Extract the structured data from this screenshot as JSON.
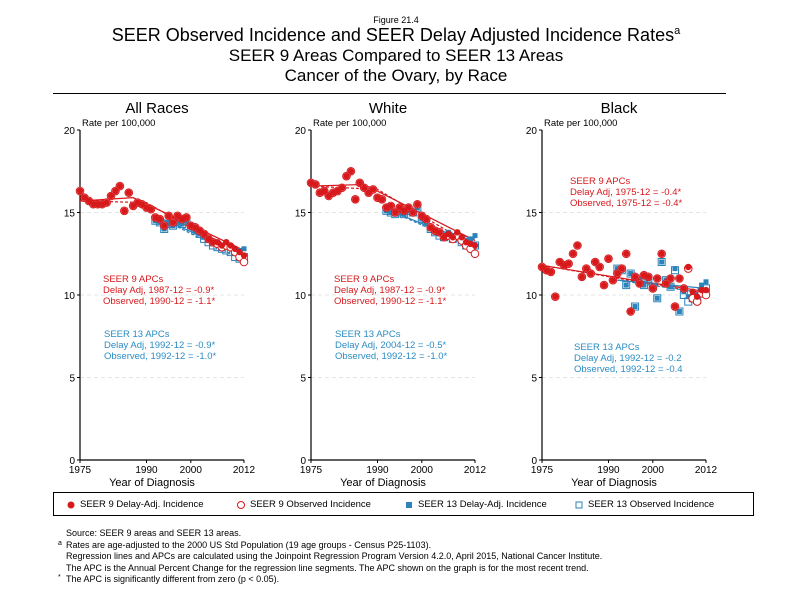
{
  "figure_label": "Figure 21.4",
  "title_line1": "SEER Observed Incidence and SEER Delay Adjusted Incidence Rates",
  "title_sup": "a",
  "title_line2": "SEER 9 Areas Compared to SEER 13 Areas",
  "title_line3": "Cancer of the Ovary, by Race",
  "colors": {
    "seer9": "#d7191c",
    "seer13": "#2b83ba",
    "seer13_text": "#2b8cc4"
  },
  "legend": [
    {
      "label": "SEER 9 Delay-Adj. Incidence",
      "marker": "filled-circle",
      "color": "#d7191c"
    },
    {
      "label": "SEER 9 Observed Incidence",
      "marker": "open-circle",
      "color": "#d7191c"
    },
    {
      "label": "SEER 13 Delay-Adj. Incidence",
      "marker": "filled-square",
      "color": "#2b83ba"
    },
    {
      "label": "SEER 13 Observed Incidence",
      "marker": "open-square",
      "color": "#2b83ba"
    }
  ],
  "notes": [
    {
      "marker": "",
      "text": "Source: SEER 9 areas and SEER 13 areas."
    },
    {
      "marker": "a",
      "text": "Rates are age-adjusted to the 2000 US Std Population (19 age groups - Census P25-1103)."
    },
    {
      "marker": "",
      "text": "Regression lines and APCs are calculated using the Joinpoint Regression Program Version 4.2.0, April 2015, National Cancer Institute."
    },
    {
      "marker": "",
      "text": "The APC is the Annual Percent Change for the regression line segments. The APC shown on the graph is for the most recent trend."
    },
    {
      "marker": "*",
      "text": "The APC is significantly different from zero (p < 0.05)."
    }
  ],
  "chart_data": [
    {
      "type": "scatter",
      "title": "All Races",
      "ylabel": "Rate per 100,000",
      "xlabel": "Year of Diagnosis",
      "xlim": [
        1975,
        2012
      ],
      "ylim": [
        0,
        20
      ],
      "xticks": [
        1975,
        1990,
        2000,
        2012
      ],
      "yticks": [
        0,
        5,
        10,
        15,
        20
      ],
      "grid": "horizontal-dashed",
      "seer9_years_start": 1975,
      "seer13_years_start": 1992,
      "seer9_delay_adj": [
        16.3,
        15.9,
        15.7,
        15.5,
        15.5,
        15.5,
        15.6,
        16.0,
        16.3,
        16.6,
        15.1,
        16.2,
        15.4,
        15.6,
        15.5,
        15.3,
        15.2,
        14.7,
        14.6,
        14.2,
        14.8,
        14.4,
        14.8,
        14.6,
        14.7,
        14.2,
        14.1,
        13.9,
        13.7,
        13.4,
        13.2,
        13.2,
        13.0,
        13.2,
        13.0,
        12.8,
        12.6,
        12.4
      ],
      "seer9_observed": [
        16.3,
        15.9,
        15.7,
        15.5,
        15.5,
        15.5,
        15.6,
        16.0,
        16.3,
        16.6,
        15.1,
        16.2,
        15.4,
        15.6,
        15.5,
        15.3,
        15.2,
        14.7,
        14.6,
        14.2,
        14.8,
        14.4,
        14.8,
        14.6,
        14.7,
        14.2,
        14.1,
        13.9,
        13.7,
        13.4,
        13.2,
        13.1,
        12.9,
        13.0,
        12.9,
        12.6,
        12.3,
        12.0
      ],
      "seer13_delay_adj": [
        14.5,
        14.4,
        14.0,
        14.3,
        14.2,
        14.4,
        14.3,
        14.5,
        14.1,
        13.9,
        13.7,
        13.5,
        13.3,
        13.1,
        13.1,
        13.0,
        13.0,
        12.9,
        12.6,
        12.7,
        12.8
      ],
      "seer13_observed": [
        14.5,
        14.4,
        14.0,
        14.3,
        14.2,
        14.4,
        14.3,
        14.5,
        14.1,
        13.9,
        13.7,
        13.4,
        13.2,
        13.0,
        12.9,
        12.8,
        12.7,
        12.6,
        12.3,
        12.2,
        12.3
      ],
      "trend_seer9_delay_adj": [
        [
          1975,
          15.7
        ],
        [
          1987,
          15.9
        ],
        [
          2012,
          12.7
        ]
      ],
      "trend_seer9_observed": [
        [
          1975,
          15.7
        ],
        [
          1990,
          15.6
        ],
        [
          2012,
          12.2
        ]
      ],
      "trend_seer13_delay_adj": [
        [
          1992,
          14.8
        ],
        [
          2012,
          12.4
        ]
      ],
      "trend_seer13_observed": [
        [
          1992,
          14.8
        ],
        [
          2012,
          12.1
        ]
      ],
      "apc_seer9": [
        "SEER 9 APCs",
        "Delay Adj, 1987-12 = -0.9*",
        "Observed, 1990-12 = -1.1*"
      ],
      "apc_seer13": [
        "SEER 13 APCs",
        "Delay Adj, 1992-12 = -0.9*",
        "Observed, 1992-12 = -1.0*"
      ],
      "apc_position": "lower-left"
    },
    {
      "type": "scatter",
      "title": "White",
      "ylabel": "Rate per 100,000",
      "xlabel": "Year of Diagnosis",
      "xlim": [
        1975,
        2012
      ],
      "ylim": [
        0,
        20
      ],
      "xticks": [
        1975,
        1990,
        2000,
        2012
      ],
      "yticks": [
        0,
        5,
        10,
        15,
        20
      ],
      "grid": "horizontal-dashed",
      "seer9_years_start": 1975,
      "seer13_years_start": 1992,
      "seer9_delay_adj": [
        16.8,
        16.7,
        16.2,
        16.3,
        16.0,
        16.2,
        16.3,
        16.5,
        17.2,
        17.5,
        15.8,
        16.8,
        16.5,
        16.2,
        16.4,
        15.9,
        15.8,
        15.3,
        15.4,
        15.0,
        15.3,
        15.1,
        15.3,
        15.0,
        15.5,
        14.8,
        14.6,
        14.1,
        13.9,
        13.8,
        13.5,
        13.7,
        13.5,
        13.8,
        13.5,
        13.2,
        13.1,
        13.0
      ],
      "seer9_observed": [
        16.8,
        16.7,
        16.2,
        16.3,
        16.0,
        16.2,
        16.3,
        16.5,
        17.2,
        17.5,
        15.8,
        16.8,
        16.5,
        16.2,
        16.4,
        15.9,
        15.8,
        15.3,
        15.4,
        15.0,
        15.3,
        15.1,
        15.3,
        15.0,
        15.5,
        14.8,
        14.6,
        14.1,
        13.9,
        13.8,
        13.5,
        13.6,
        13.4,
        13.6,
        13.3,
        13.0,
        12.8,
        12.5
      ],
      "seer13_delay_adj": [
        15.1,
        15.0,
        14.9,
        15.0,
        14.9,
        15.1,
        15.0,
        15.3,
        14.6,
        14.4,
        14.0,
        13.8,
        13.7,
        13.6,
        13.8,
        13.6,
        13.7,
        13.5,
        13.3,
        13.4,
        13.6
      ],
      "seer13_observed": [
        15.1,
        15.0,
        14.9,
        15.0,
        14.9,
        15.1,
        15.0,
        15.3,
        14.6,
        14.4,
        14.0,
        13.8,
        13.6,
        13.5,
        13.6,
        13.4,
        13.5,
        13.2,
        13.0,
        13.0,
        13.0
      ],
      "trend_seer9_delay_adj": [
        [
          1975,
          16.6
        ],
        [
          1987,
          16.7
        ],
        [
          2012,
          13.3
        ]
      ],
      "trend_seer9_observed": [
        [
          1975,
          16.6
        ],
        [
          1990,
          16.4
        ],
        [
          2012,
          12.9
        ]
      ],
      "trend_seer13_delay_adj": [
        [
          1992,
          15.2
        ],
        [
          2004,
          13.9
        ],
        [
          2012,
          13.4
        ]
      ],
      "trend_seer13_observed": [
        [
          1992,
          15.2
        ],
        [
          2012,
          12.8
        ]
      ],
      "apc_seer9": [
        "SEER 9 APCs",
        "Delay Adj, 1987-12 = -0.9*",
        "Observed, 1990-12 = -1.1*"
      ],
      "apc_seer13": [
        "SEER 13 APCs",
        "Delay Adj, 2004-12 = -0.5*",
        "Observed, 1992-12 = -1.0*"
      ],
      "apc_position": "lower-left"
    },
    {
      "type": "scatter",
      "title": "Black",
      "ylabel": "Rate per 100,000",
      "xlabel": "Year of Diagnosis",
      "xlim": [
        1975,
        2012
      ],
      "ylim": [
        0,
        20
      ],
      "xticks": [
        1975,
        1990,
        2000,
        2012
      ],
      "yticks": [
        0,
        5,
        10,
        15,
        20
      ],
      "grid": "horizontal-dashed",
      "seer9_years_start": 1975,
      "seer13_years_start": 1992,
      "seer9_delay_adj": [
        11.7,
        11.5,
        11.4,
        9.9,
        12.0,
        11.8,
        11.9,
        12.5,
        13.0,
        11.1,
        11.6,
        11.3,
        12.0,
        11.7,
        10.6,
        12.2,
        10.9,
        11.3,
        11.6,
        12.5,
        9.0,
        11.1,
        10.7,
        11.2,
        11.1,
        10.4,
        11.0,
        12.5,
        10.7,
        11.0,
        9.3,
        11.0,
        10.4,
        11.7,
        10.2,
        9.9,
        10.3,
        10.3
      ],
      "seer9_observed": [
        11.7,
        11.5,
        11.4,
        9.9,
        12.0,
        11.8,
        11.9,
        12.5,
        13.0,
        11.1,
        11.6,
        11.3,
        12.0,
        11.7,
        10.6,
        12.2,
        10.9,
        11.3,
        11.6,
        12.5,
        9.0,
        11.1,
        10.7,
        11.2,
        11.1,
        10.4,
        11.0,
        12.5,
        10.7,
        11.0,
        9.3,
        11.0,
        10.4,
        11.6,
        9.8,
        9.6,
        10.1,
        10.0
      ],
      "seer13_delay_adj": [
        11.6,
        11.5,
        10.6,
        11.3,
        9.3,
        11.0,
        10.6,
        11.0,
        10.5,
        9.8,
        12.0,
        10.9,
        10.5,
        11.6,
        9.0,
        10.2,
        9.9,
        10.2,
        10.0,
        10.6,
        10.8
      ],
      "seer13_observed": [
        11.6,
        11.5,
        10.6,
        11.3,
        9.3,
        11.0,
        10.6,
        11.0,
        10.5,
        9.8,
        12.0,
        10.9,
        10.5,
        11.5,
        9.0,
        10.0,
        9.6,
        9.8,
        9.7,
        10.2,
        10.4
      ],
      "trend_seer9_delay_adj": [
        [
          1975,
          11.8
        ],
        [
          2012,
          10.2
        ]
      ],
      "trend_seer9_observed": [
        [
          1975,
          11.8
        ],
        [
          2012,
          10.1
        ]
      ],
      "trend_seer13_delay_adj": [
        [
          1992,
          10.9
        ],
        [
          2012,
          10.4
        ]
      ],
      "trend_seer13_observed": [
        [
          1992,
          10.9
        ],
        [
          2012,
          10.1
        ]
      ],
      "apc_seer9": [
        "SEER 9 APCs",
        "Delay Adj, 1975-12 = -0.4*",
        "Observed, 1975-12 = -0.4*"
      ],
      "apc_seer13": [
        "SEER 13 APCs",
        "Delay Adj, 1992-12 = -0.2",
        "Observed, 1992-12 = -0.4"
      ],
      "apc_position": "seer9-upper, seer13-lower"
    }
  ]
}
